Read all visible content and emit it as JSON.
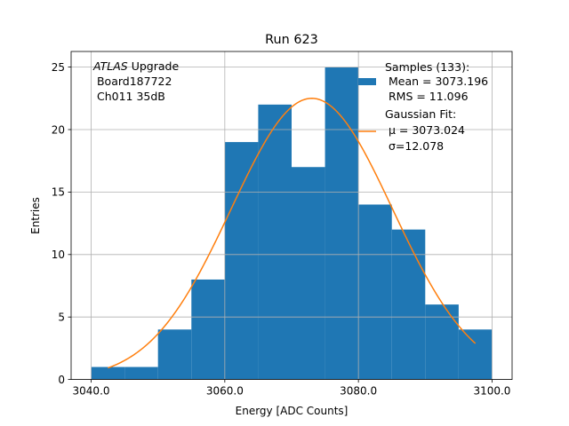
{
  "chart_data": {
    "type": "bar",
    "title": "Run 623",
    "xlabel": "Energy [ADC Counts]",
    "ylabel": "Entries",
    "xlim": [
      3037.0,
      3103.0
    ],
    "ylim": [
      0,
      26.25
    ],
    "xticks": [
      3040,
      3060,
      3080,
      3100
    ],
    "xtick_labels": [
      "3040.0",
      "3060.0",
      "3080.0",
      "3100.0"
    ],
    "yticks": [
      0,
      5,
      10,
      15,
      20,
      25
    ],
    "ytick_labels": [
      "0",
      "5",
      "10",
      "15",
      "20",
      "25"
    ],
    "grid": true,
    "bar_color": "#1f77b4",
    "line_color": "#ff7f0e",
    "bin_edges": [
      3040,
      3045,
      3050,
      3055,
      3060,
      3065,
      3070,
      3075,
      3080,
      3085,
      3090,
      3095,
      3100
    ],
    "values": [
      1,
      1,
      4,
      8,
      19,
      22,
      17,
      25,
      14,
      12,
      6,
      4
    ],
    "fit": {
      "mu": 3073.024,
      "sigma": 12.078,
      "amplitude": 22.5,
      "x_range": [
        3042.5,
        3097.5
      ]
    },
    "annotation": {
      "italic": "ATLAS",
      "line1_rest": " Upgrade",
      "line2": " Board187722",
      "line3": " Ch011 35dB"
    },
    "legend": {
      "position": "top-right",
      "samples": [
        "Samples (133):",
        " Mean = 3073.196",
        " RMS = 11.096"
      ],
      "fit": [
        "Gaussian Fit:",
        " μ = 3073.024",
        " σ=12.078"
      ]
    }
  }
}
